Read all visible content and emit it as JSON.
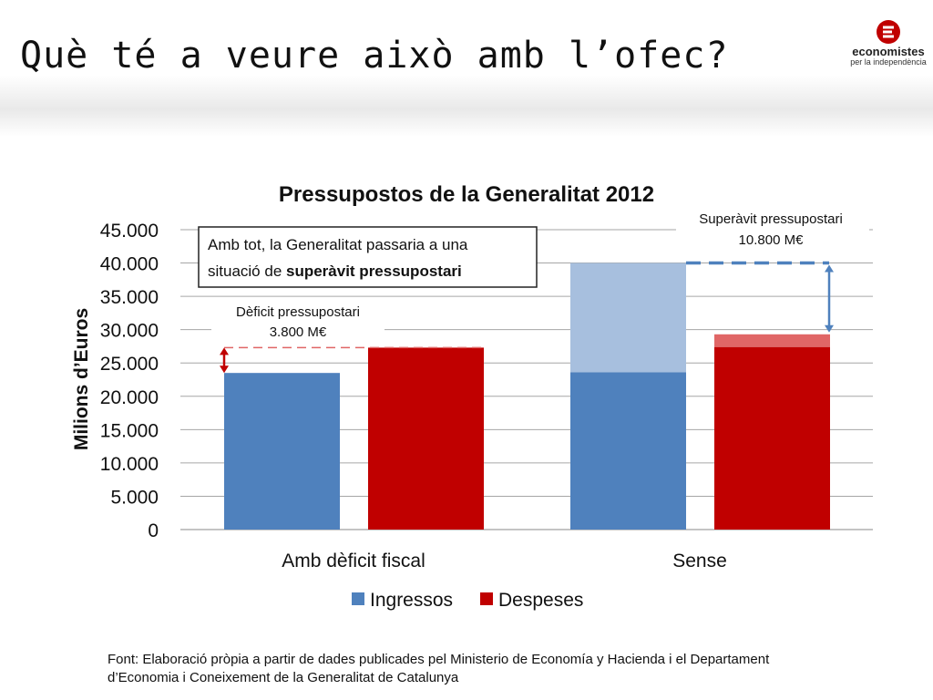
{
  "slide": {
    "title": "Què té a veure això amb l’ofec?",
    "logo_text": "economistes",
    "logo_sub": "per la independència"
  },
  "chart_data": {
    "type": "bar",
    "title": "Pressupostos de la Generalitat 2012",
    "ylabel": "Milions d’Euros",
    "xlabel": "",
    "ylim": [
      0,
      45000
    ],
    "yticks": [
      0,
      5000,
      10000,
      15000,
      20000,
      25000,
      30000,
      35000,
      40000,
      45000
    ],
    "ytick_labels": [
      "0",
      "5.000",
      "10.000",
      "15.000",
      "20.000",
      "25.000",
      "30.000",
      "35.000",
      "40.000",
      "45.000"
    ],
    "grid": true,
    "legend_position": "bottom",
    "categories": [
      "Amb dèficit fiscal",
      "Sense"
    ],
    "series": [
      {
        "name": "Ingressos",
        "color": "#4f81bd",
        "values": [
          23500,
          23600
        ],
        "extra": [
          0,
          16400
        ],
        "extra_color": "#a7bfde"
      },
      {
        "name": "Despeses",
        "color": "#c00000",
        "values": [
          27300,
          27400
        ],
        "extra": [
          0,
          1900
        ],
        "extra_color": "#e06666"
      }
    ],
    "annotations": {
      "callout_box": {
        "text": "Amb tot, la Generalitat passaria a una situació de ",
        "bold": "superàvit pressupostari"
      },
      "deficit": {
        "line1": "Dèficit pressupostari",
        "line2": "3.800 M€"
      },
      "surplus": {
        "line1": "Superàvit pressupostari",
        "line2": "10.800 M€"
      }
    }
  },
  "footnote": "Font: Elaboració pròpia a partir de dades publicades pel Ministerio de Economía y Hacienda i el Departament d’Economia i Coneixement de la Generalitat de Catalunya"
}
